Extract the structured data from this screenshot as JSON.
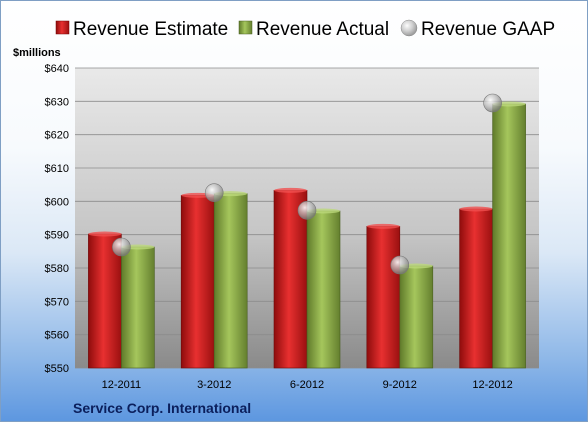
{
  "chart_data": {
    "type": "bar",
    "title": "",
    "unit_label": "$millions",
    "footer_label": "Service Corp. International",
    "categories": [
      "12-2011",
      "3-2012",
      "6-2012",
      "9-2012",
      "12-2012"
    ],
    "ylim": [
      550,
      640
    ],
    "yticks": [
      550,
      560,
      570,
      580,
      590,
      600,
      610,
      620,
      630,
      640
    ],
    "ytick_labels": [
      "$550",
      "$560",
      "$570",
      "$580",
      "$590",
      "$600",
      "$610",
      "$620",
      "$630",
      "$640"
    ],
    "grid": true,
    "legend_position": "top",
    "series": [
      {
        "name": "Revenue Estimate",
        "kind": "bar",
        "color": "#d42020",
        "values": [
          590.2,
          601.8,
          603.3,
          592.5,
          597.7
        ]
      },
      {
        "name": "Revenue Actual",
        "kind": "bar",
        "color": "#8fb048",
        "values": [
          586.3,
          602.3,
          597.1,
          580.6,
          629.2
        ]
      },
      {
        "name": "Revenue GAAP",
        "kind": "marker",
        "color": "#b8b8b8",
        "values": [
          586.3,
          602.6,
          597.3,
          580.9,
          629.5
        ]
      }
    ]
  }
}
